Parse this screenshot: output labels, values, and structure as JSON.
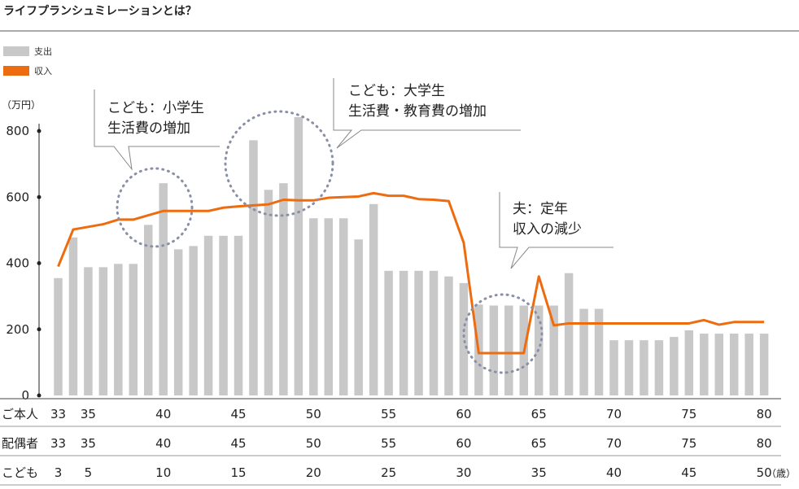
{
  "chart_data": {
    "type": "bar",
    "title": "ライフプランシュミレーションとは？",
    "ylabel": "（万円）",
    "ylim": [
      0,
      850
    ],
    "yticks": [
      0,
      200,
      400,
      600,
      800
    ],
    "grid": false,
    "legend": {
      "position": "top-left",
      "items": [
        {
          "label": "支出",
          "color": "#c8c8c8"
        },
        {
          "label": "収入",
          "color": "#ee6c10"
        }
      ]
    },
    "x": [
      33,
      34,
      35,
      36,
      37,
      38,
      39,
      40,
      41,
      42,
      43,
      44,
      45,
      46,
      47,
      48,
      49,
      50,
      51,
      52,
      53,
      54,
      55,
      56,
      57,
      58,
      59,
      60,
      61,
      62,
      63,
      64,
      65,
      66,
      67,
      68,
      69,
      70,
      71,
      72,
      73,
      74,
      75,
      76,
      77,
      78,
      79,
      80
    ],
    "series": [
      {
        "name": "支出",
        "kind": "bar",
        "color": "#c8c8c8",
        "values": [
          355,
          478,
          388,
          388,
          398,
          398,
          516,
          642,
          442,
          452,
          483,
          483,
          483,
          772,
          622,
          642,
          842,
          536,
          536,
          536,
          472,
          579,
          377,
          377,
          377,
          377,
          360,
          340,
          275,
          272,
          272,
          272,
          272,
          272,
          370,
          262,
          262,
          167,
          167,
          167,
          167,
          177,
          197,
          187,
          187,
          187,
          187,
          187
        ]
      },
      {
        "name": "収入",
        "kind": "line",
        "color": "#ee6c10",
        "values": [
          390,
          502,
          510,
          518,
          532,
          532,
          545,
          558,
          558,
          558,
          558,
          568,
          572,
          575,
          578,
          592,
          590,
          590,
          598,
          600,
          602,
          612,
          604,
          604,
          594,
          592,
          588,
          462,
          128,
          128,
          128,
          128,
          360,
          212,
          218,
          218,
          218,
          218,
          218,
          218,
          218,
          218,
          218,
          228,
          214,
          222,
          222,
          222
        ]
      }
    ],
    "axis_rows": [
      {
        "label": "ご本人",
        "ticks": [
          "33",
          "35",
          "40",
          "45",
          "50",
          "55",
          "60",
          "65",
          "70",
          "75",
          "80"
        ]
      },
      {
        "label": "配偶者",
        "ticks": [
          "33",
          "35",
          "40",
          "45",
          "50",
          "55",
          "60",
          "65",
          "70",
          "75",
          "80"
        ]
      },
      {
        "label": "こども",
        "ticks": [
          "3",
          "5",
          "10",
          "15",
          "20",
          "25",
          "30",
          "35",
          "40",
          "45",
          "50"
        ],
        "unit": "（歳）"
      }
    ],
    "annotations": [
      {
        "lines": [
          "こども：小学生",
          "生活費の増加"
        ]
      },
      {
        "lines": [
          "こども：大学生",
          "生活費・教育費の増加"
        ]
      },
      {
        "lines": [
          "夫：定年",
          "収入の減少"
        ]
      }
    ]
  }
}
